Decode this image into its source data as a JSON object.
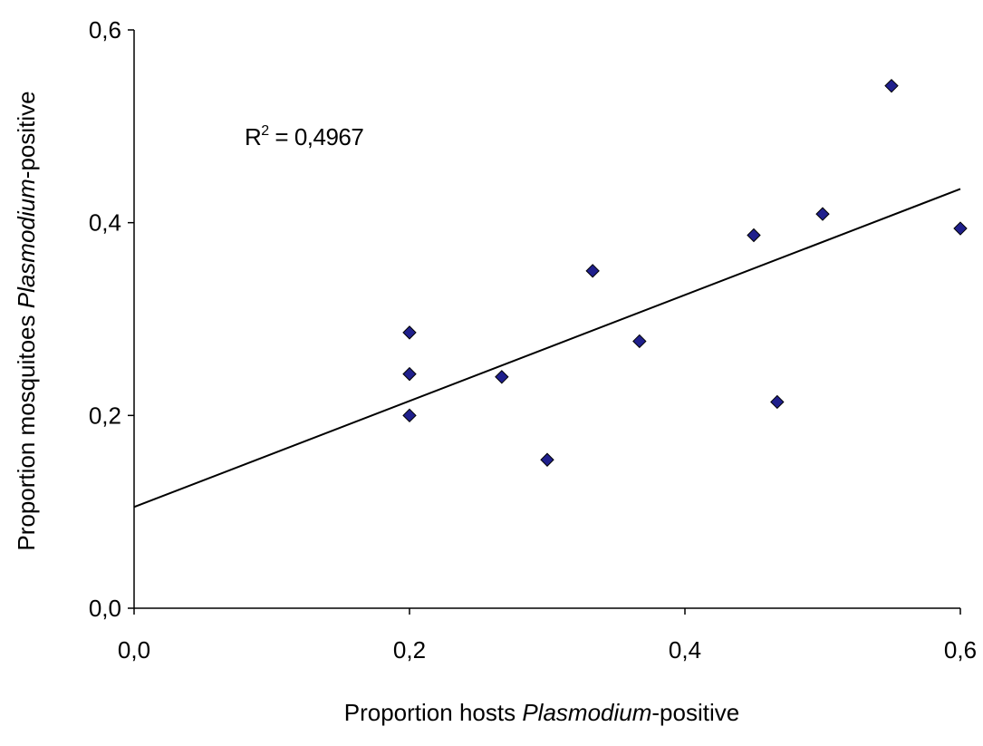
{
  "chart_data": {
    "type": "scatter",
    "title": "",
    "xlabel": {
      "prefix": "Proportion hosts ",
      "italic": "Plasmodium",
      "suffix": "-positive"
    },
    "ylabel": {
      "prefix": "Proportion mosquitoes ",
      "italic": "Plasmodium",
      "suffix": "-positive"
    },
    "xlim": [
      0,
      0.6
    ],
    "ylim": [
      0,
      0.6
    ],
    "x_ticks": [
      {
        "value": 0,
        "label": "0,0"
      },
      {
        "value": 0.2,
        "label": "0,2"
      },
      {
        "value": 0.4,
        "label": "0,4"
      },
      {
        "value": 0.6,
        "label": "0,6"
      }
    ],
    "y_ticks": [
      {
        "value": 0,
        "label": "0,0"
      },
      {
        "value": 0.2,
        "label": "0,2"
      },
      {
        "value": 0.4,
        "label": "0,4"
      },
      {
        "value": 0.6,
        "label": "0,6"
      }
    ],
    "grid": false,
    "marker": "diamond",
    "marker_color": "#1f1f8c",
    "points": [
      {
        "x": 0.2,
        "y": 0.286
      },
      {
        "x": 0.2,
        "y": 0.243
      },
      {
        "x": 0.2,
        "y": 0.2
      },
      {
        "x": 0.267,
        "y": 0.24
      },
      {
        "x": 0.3,
        "y": 0.154
      },
      {
        "x": 0.333,
        "y": 0.35
      },
      {
        "x": 0.367,
        "y": 0.277
      },
      {
        "x": 0.45,
        "y": 0.387
      },
      {
        "x": 0.467,
        "y": 0.214
      },
      {
        "x": 0.5,
        "y": 0.409
      },
      {
        "x": 0.55,
        "y": 0.542
      },
      {
        "x": 0.6,
        "y": 0.394
      }
    ],
    "trendline": {
      "type": "linear",
      "y_at_xmin": 0.105,
      "y_at_xmax": 0.435
    },
    "annotation": {
      "label_base": "R",
      "superscript": "2",
      "text": " = 0,4967"
    }
  }
}
